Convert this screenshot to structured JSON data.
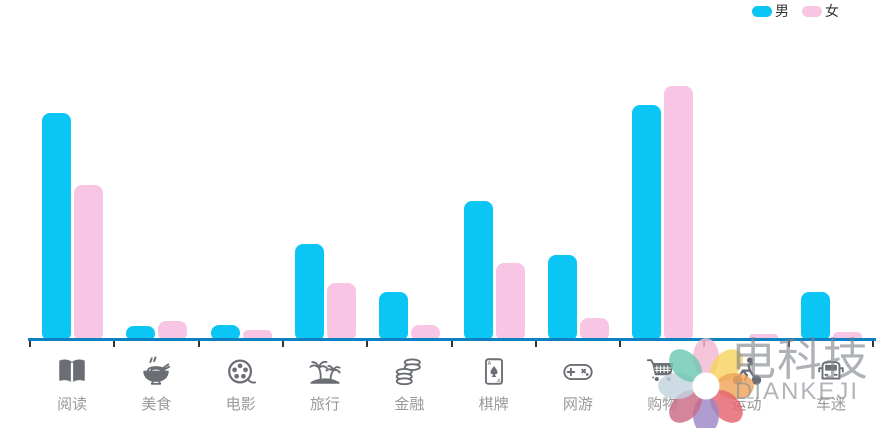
{
  "legend": {
    "male": "男",
    "female": "女"
  },
  "watermark": {
    "title": "电科技",
    "subtitle": "DIANKEJI"
  },
  "colors": {
    "axis_line": "#0e81c2",
    "tick": "#333333",
    "category_label": "#999999",
    "icon": "#6b6f75",
    "legend_text": "#333333",
    "watermark_logo_petals": [
      "#f2b7d0",
      "#f5d35f",
      "#f0a45a",
      "#e4636e",
      "#9d86c6",
      "#c96a86",
      "#c2d3de",
      "#6cc7b2"
    ]
  },
  "chart_data": {
    "type": "bar",
    "title": "",
    "categories": [
      "阅读",
      "美食",
      "电影",
      "旅行",
      "金融",
      "棋牌",
      "网游",
      "购物",
      "运动",
      "车迷"
    ],
    "icons": [
      "book-icon",
      "noodles-icon",
      "film-reel-icon",
      "palm-island-icon",
      "coins-icon",
      "poker-card-icon",
      "gamepad-icon",
      "shopping-cart-icon",
      "cyclist-icon",
      "car-icon"
    ],
    "series": [
      {
        "name": "男",
        "color": "#0bc5f4",
        "values": [
          228,
          15,
          16,
          97,
          49,
          140,
          86,
          236,
          0,
          49
        ]
      },
      {
        "name": "女",
        "color": "#f8c6e4",
        "values": [
          156,
          20,
          11,
          58,
          16,
          78,
          23,
          255,
          7,
          9
        ]
      }
    ],
    "xlabel": "",
    "ylabel": "",
    "ylim": [
      0,
      262
    ],
    "value_unit": "relative (no y-axis labels shown)",
    "legend_position": "top-right",
    "grid": false,
    "y_axis_visible": false
  }
}
